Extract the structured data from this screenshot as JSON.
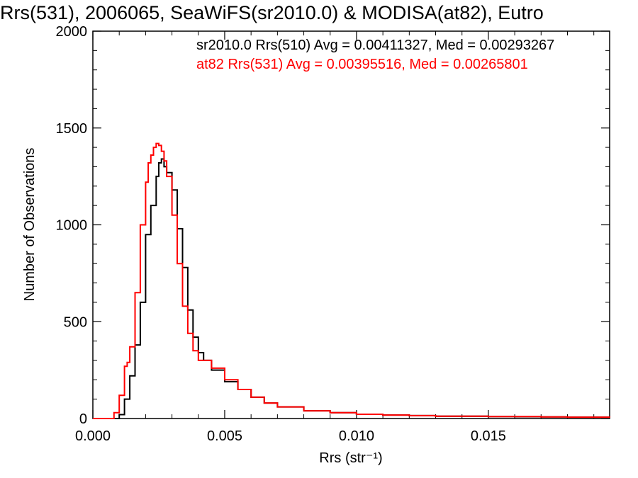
{
  "chart_data": {
    "type": "line",
    "title": "Rrs(531), 2006065, SeaWiFS(sr2010.0) & MODISA(at82), Eutro",
    "xlabel": "Rrs (str⁻¹)",
    "ylabel": "Number of Observations",
    "xlim": [
      0,
      0.0196
    ],
    "ylim": [
      0,
      2000
    ],
    "xticks": [
      0,
      0.005,
      0.01,
      0.015
    ],
    "xtick_labels": [
      "0.000",
      "0.005",
      "0.010",
      "0.015"
    ],
    "yticks": [
      0,
      500,
      1000,
      1500,
      2000
    ],
    "ytick_labels": [
      "0",
      "500",
      "1000",
      "1500",
      "2000"
    ],
    "grid": false,
    "legend_position": "top-right",
    "series": [
      {
        "name": "sr2010.0 Rrs(510) Avg = 0.00411327, Med = 0.00293267",
        "color": "#000000",
        "x": [
          0.0,
          0.0008,
          0.001,
          0.0012,
          0.0014,
          0.0016,
          0.0018,
          0.002,
          0.0022,
          0.0024,
          0.0025,
          0.0026,
          0.0027,
          0.0028,
          0.003,
          0.0032,
          0.0034,
          0.0036,
          0.0038,
          0.004,
          0.0042,
          0.0045,
          0.005,
          0.0055,
          0.006,
          0.0065,
          0.007,
          0.008,
          0.009,
          0.01,
          0.011,
          0.012,
          0.013,
          0.014,
          0.015,
          0.016,
          0.017,
          0.018,
          0.0196
        ],
        "y": [
          0,
          0,
          20,
          100,
          220,
          380,
          600,
          950,
          1100,
          1250,
          1320,
          1340,
          1300,
          1270,
          1180,
          980,
          780,
          560,
          420,
          340,
          300,
          250,
          190,
          150,
          110,
          80,
          60,
          40,
          30,
          22,
          18,
          15,
          12,
          12,
          10,
          9,
          8,
          7,
          5
        ]
      },
      {
        "name": "at82 Rrs(531) Avg = 0.00395516, Med = 0.00265801",
        "color": "#ff0000",
        "x": [
          0.0,
          0.0006,
          0.0008,
          0.001,
          0.0012,
          0.0013,
          0.0014,
          0.0016,
          0.0018,
          0.002,
          0.0021,
          0.0022,
          0.0023,
          0.0024,
          0.0025,
          0.0026,
          0.0027,
          0.0028,
          0.003,
          0.0032,
          0.0034,
          0.0036,
          0.0038,
          0.004,
          0.0045,
          0.005,
          0.0055,
          0.006,
          0.0065,
          0.007,
          0.008,
          0.009,
          0.01,
          0.011,
          0.012,
          0.013,
          0.014,
          0.015,
          0.016,
          0.017,
          0.018,
          0.0196
        ],
        "y": [
          0,
          0,
          30,
          120,
          270,
          290,
          370,
          650,
          1000,
          1220,
          1320,
          1360,
          1400,
          1420,
          1410,
          1380,
          1330,
          1250,
          1050,
          800,
          580,
          440,
          350,
          300,
          260,
          200,
          150,
          110,
          80,
          60,
          40,
          30,
          22,
          18,
          15,
          12,
          12,
          10,
          10,
          8,
          7,
          5
        ]
      }
    ]
  }
}
